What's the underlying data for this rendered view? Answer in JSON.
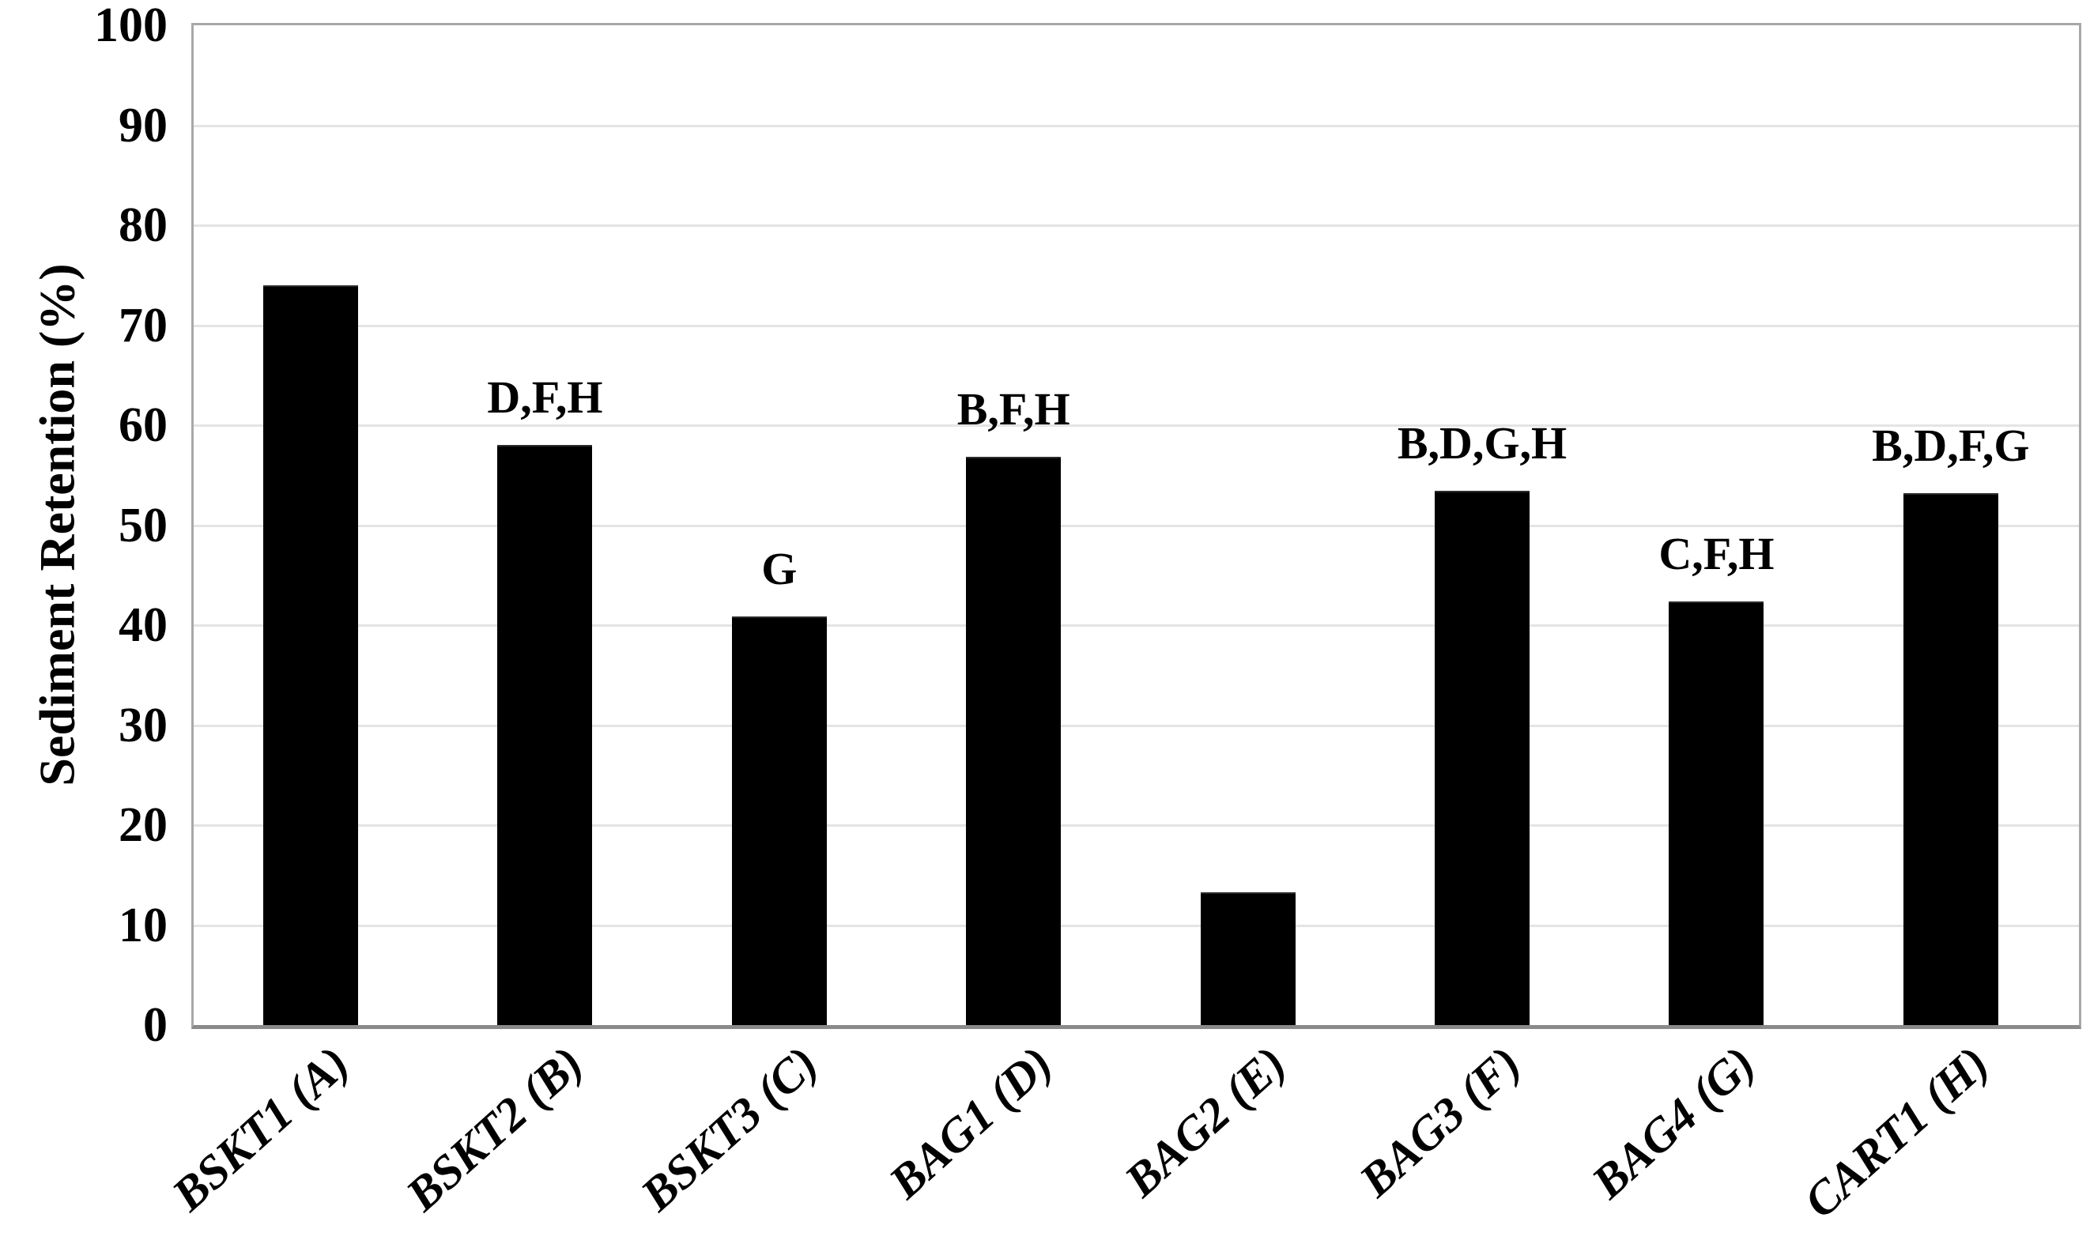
{
  "chart_data": {
    "type": "bar",
    "title": "",
    "ylabel": "Sediment Retention (%)",
    "xlabel": "",
    "categories": [
      "BSKT1 (A)",
      "BSKT2 (B)",
      "BSKT3 (C)",
      "BAG1 (D)",
      "BAG2 (E)",
      "BAG3 (F)",
      "BAG4 (G)",
      "CART1 (H)"
    ],
    "values": [
      74,
      58,
      40.9,
      56.8,
      13.3,
      53.4,
      42.4,
      53.2
    ],
    "annotations": [
      "",
      "D,F,H",
      "G",
      "B,F,H",
      "",
      "B,D,G,H",
      "C,F,H",
      "B,D,F,G"
    ],
    "ylim": [
      0,
      100
    ],
    "yticks": [
      0,
      10,
      20,
      30,
      40,
      50,
      60,
      70,
      80,
      90,
      100
    ],
    "grid": "horizontal",
    "legend": "none",
    "bar_color": "#000000",
    "gridline_color": "#e4e4e4",
    "axis_border_color": "#a8a8a8",
    "text_color": "#000000",
    "background_color": "#ffffff"
  }
}
